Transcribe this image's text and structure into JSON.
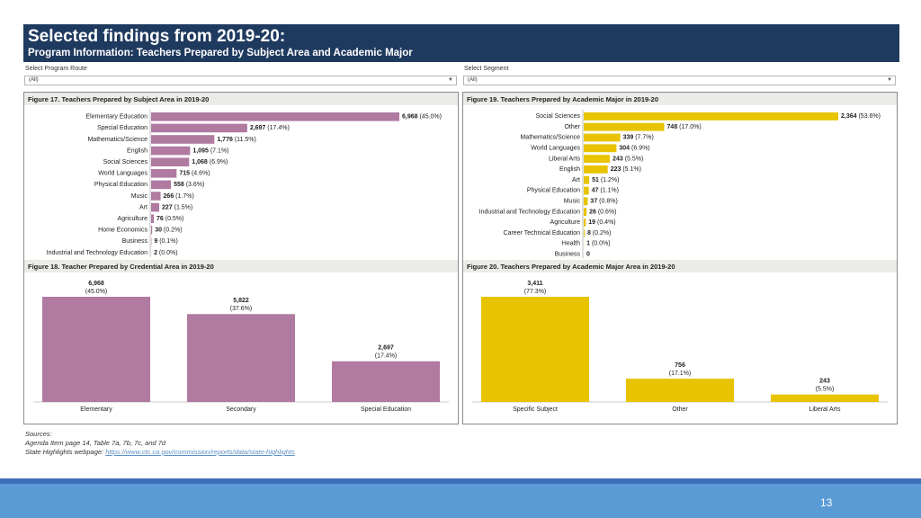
{
  "header": {
    "title": "Selected findings from 2019-20:",
    "subtitle": "Program Information: Teachers Prepared by Subject Area and Academic Major"
  },
  "filters": {
    "route_label": "Select Program Route",
    "route_value": "(All)",
    "segment_label": "Select Segment",
    "segment_value": "(All)"
  },
  "colors": {
    "purple": "#b07aa1",
    "yellow": "#e8c300",
    "banner": "#1f3a5f"
  },
  "chart_data": [
    {
      "id": "fig17",
      "type": "bar",
      "orientation": "horizontal",
      "title": "Figure 17. Teachers Prepared by Subject Area in 2019-20",
      "categories": [
        "Elementary Education",
        "Special Education",
        "Mathematics/Science",
        "English",
        "Social Sciences",
        "World Languages",
        "Physical Education",
        "Music",
        "Art",
        "Agriculture",
        "Home Economics",
        "Business",
        "Industrial and Technology Education"
      ],
      "values": [
        6968,
        2697,
        1776,
        1095,
        1068,
        715,
        558,
        266,
        227,
        76,
        30,
        9,
        2
      ],
      "labels": [
        "6,968",
        "2,697",
        "1,776",
        "1,095",
        "1,068",
        "715",
        "558",
        "266",
        "227",
        "76",
        "30",
        "9",
        "2"
      ],
      "pcts": [
        "(45.0%)",
        "(17.4%)",
        "(11.5%)",
        "(7.1%)",
        "(6.9%)",
        "(4.6%)",
        "(3.6%)",
        "(1.7%)",
        "(1.5%)",
        "(0.5%)",
        "(0.2%)",
        "(0.1%)",
        "(0.0%)"
      ],
      "color": "#b07aa1"
    },
    {
      "id": "fig18",
      "type": "bar",
      "orientation": "vertical",
      "title": "Figure 18. Teacher Prepared by Credential Area in 2019-20",
      "categories": [
        "Elementary",
        "Secondary",
        "Special Education"
      ],
      "values": [
        6968,
        5822,
        2697
      ],
      "labels": [
        "6,968",
        "5,822",
        "2,697"
      ],
      "pcts": [
        "(45.0%)",
        "(37.6%)",
        "(17.4%)"
      ],
      "color": "#b07aa1"
    },
    {
      "id": "fig19",
      "type": "bar",
      "orientation": "horizontal",
      "title": "Figure 19. Teachers Prepared by Academic Major in 2019-20",
      "categories": [
        "Social Sciences",
        "Other",
        "Mathematics/Science",
        "World Languages",
        "Liberal Arts",
        "English",
        "Art",
        "Physical Education",
        "Music",
        "Industrial and Technology Education",
        "Agriculture",
        "Career Technical Education",
        "Health",
        "Business"
      ],
      "values": [
        2364,
        748,
        339,
        304,
        243,
        223,
        51,
        47,
        37,
        26,
        19,
        8,
        1,
        0
      ],
      "labels": [
        "2,364",
        "748",
        "339",
        "304",
        "243",
        "223",
        "51",
        "47",
        "37",
        "26",
        "19",
        "8",
        "1",
        "0"
      ],
      "pcts": [
        "(53.6%)",
        "(17.0%)",
        "(7.7%)",
        "(6.9%)",
        "(5.5%)",
        "(5.1%)",
        "(1.2%)",
        "(1.1%)",
        "(0.8%)",
        "(0.6%)",
        "(0.4%)",
        "(0.2%)",
        "(0.0%)",
        ""
      ],
      "color": "#e8c300"
    },
    {
      "id": "fig20",
      "type": "bar",
      "orientation": "vertical",
      "title": "Figure 20. Teachers Prepared by Academic Major Area in 2019-20",
      "categories": [
        "Specific Subject",
        "Other",
        "Liberal Arts"
      ],
      "values": [
        3411,
        756,
        243
      ],
      "labels": [
        "3,411",
        "756",
        "243"
      ],
      "pcts": [
        "(77.3%)",
        "(17.1%)",
        "(5.5%)"
      ],
      "color": "#e8c300"
    }
  ],
  "sources": {
    "heading": "Sources:",
    "line1": "Agenda Item page 14, Table 7a, 7b, 7c, and 7d",
    "line2_prefix": "State Highlights webpage:",
    "link": "https://www.ctc.ca.gov/commission/reports/data/state-highlights"
  },
  "footer": {
    "page_number": "13"
  }
}
